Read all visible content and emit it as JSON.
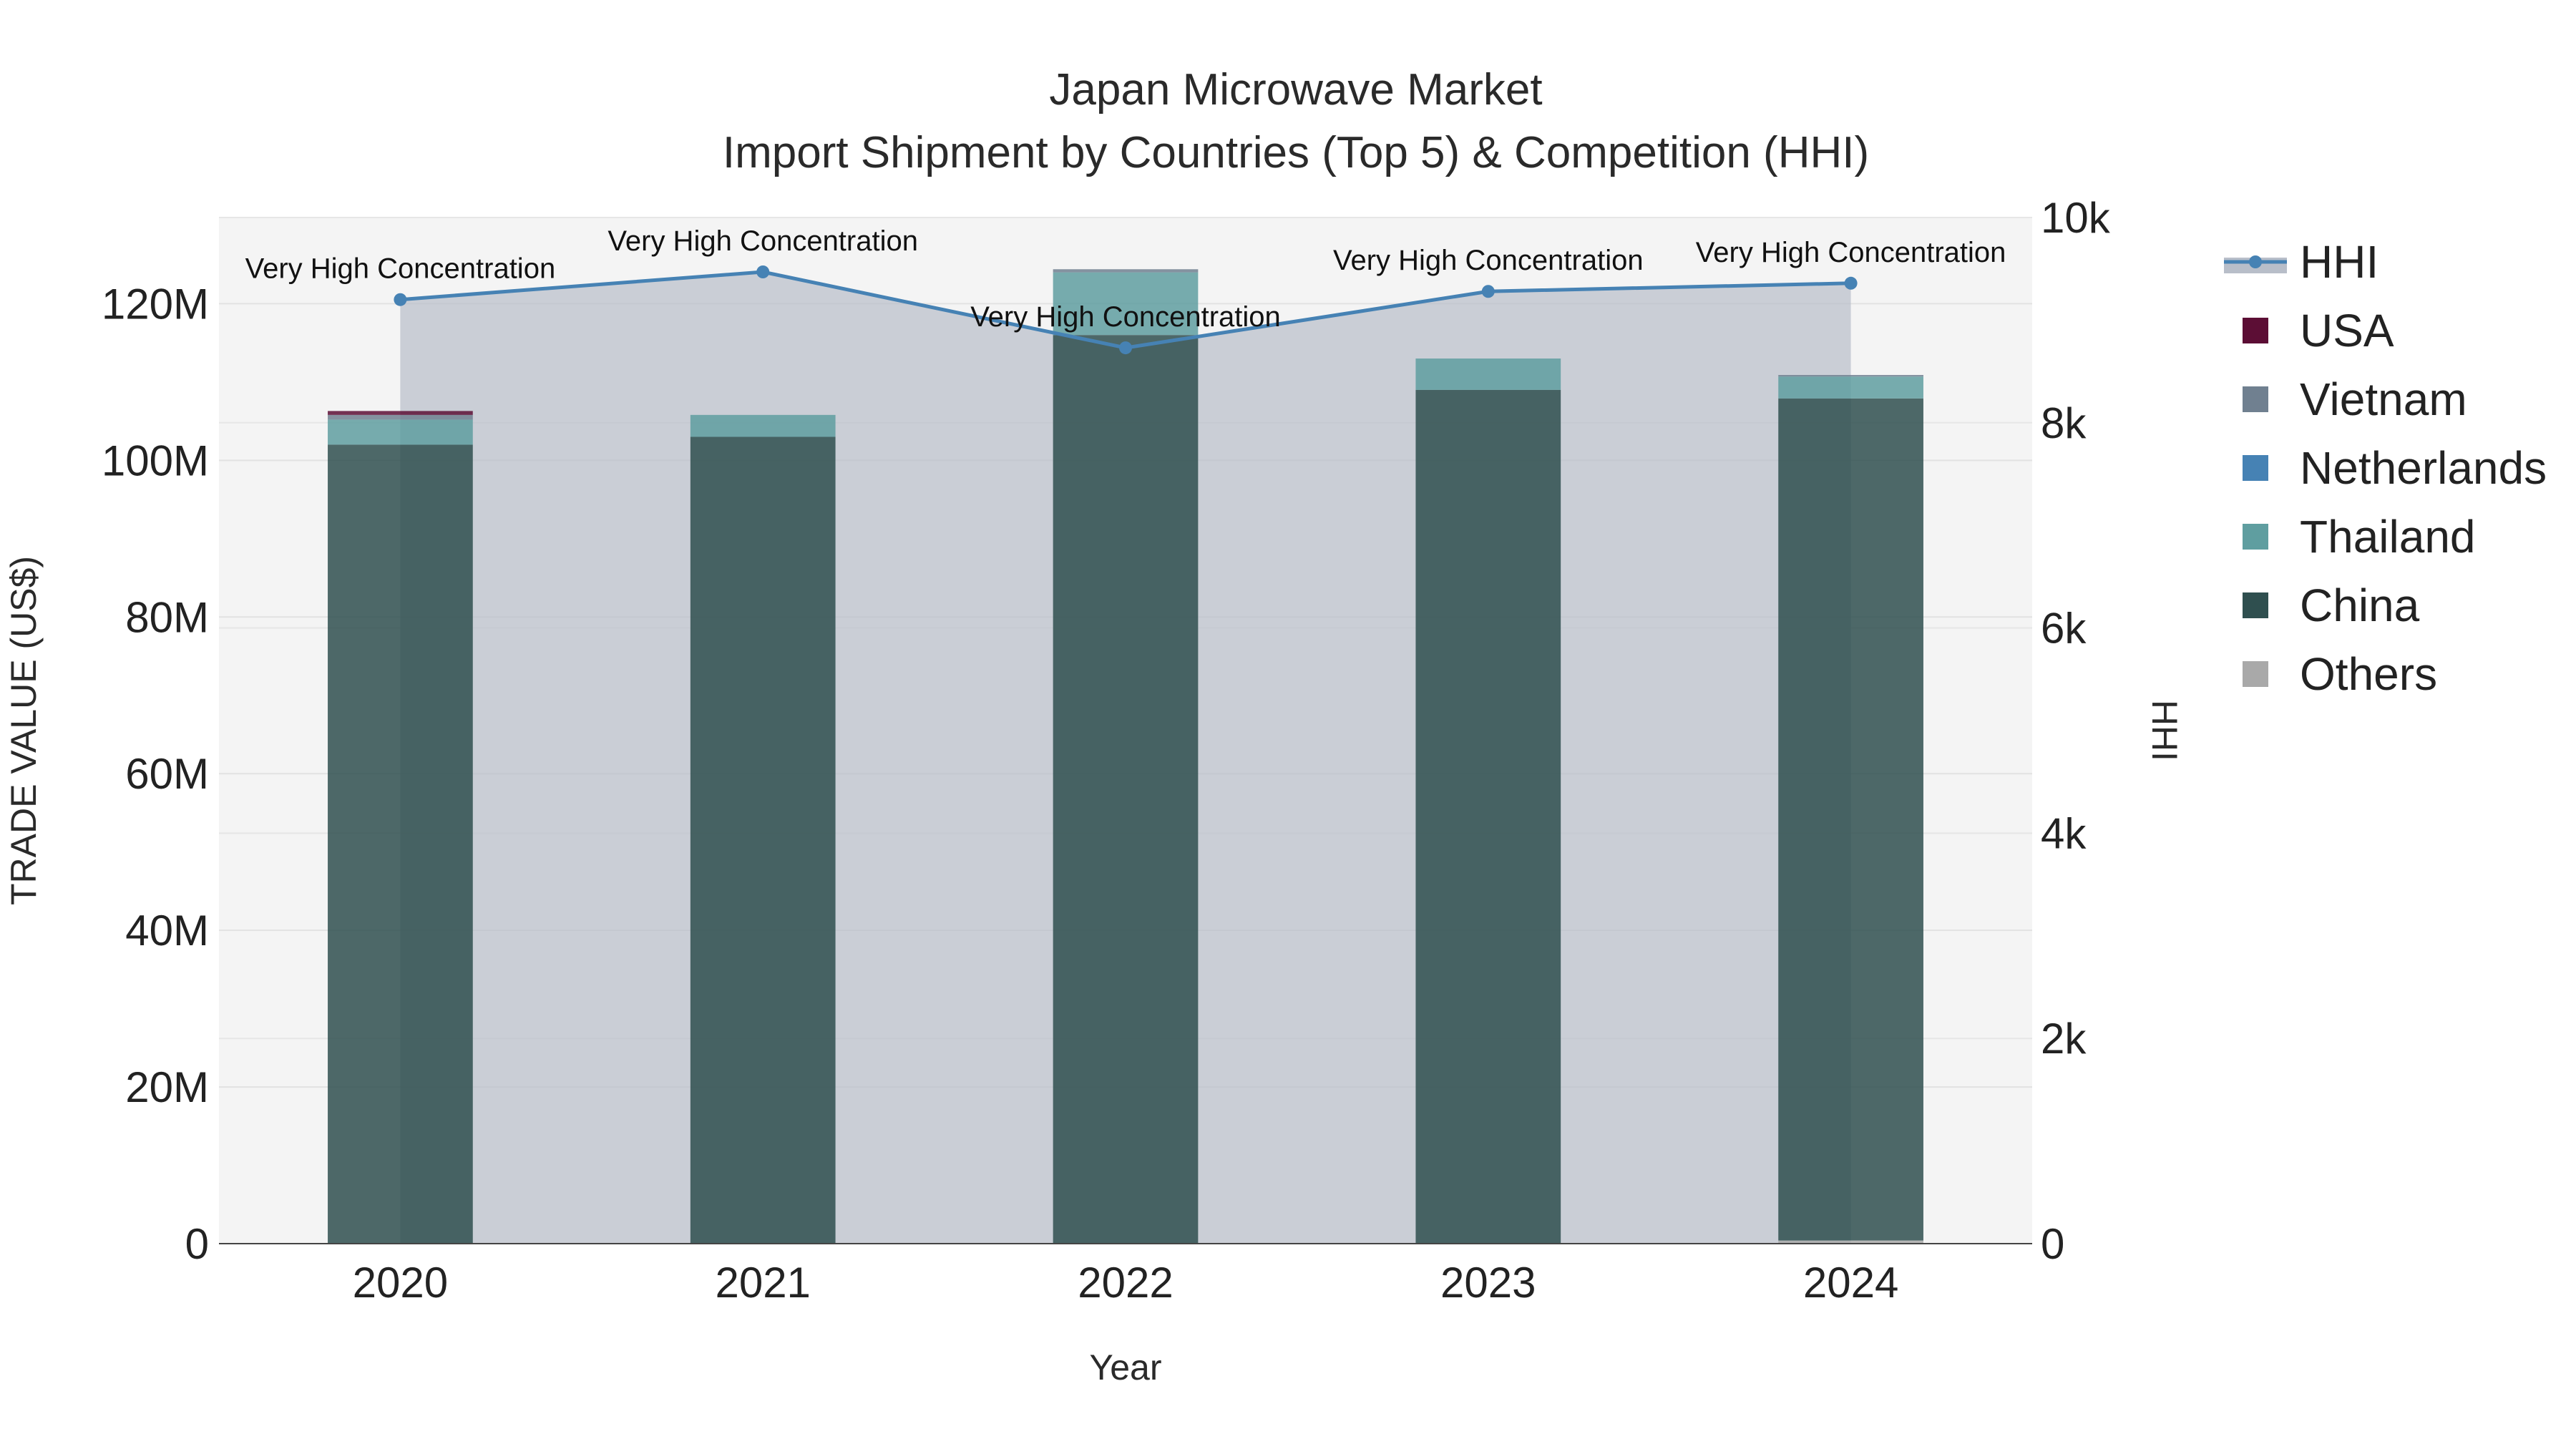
{
  "chart_data": {
    "type": "bar",
    "title": "Japan Microwave Market",
    "subtitle": "Import Shipment by Countries (Top 5) & Competition (HHI)",
    "xlabel": "Year",
    "ylabel": "TRADE VALUE (US$)",
    "y2label": "HHI",
    "categories": [
      "2020",
      "2021",
      "2022",
      "2023",
      "2024"
    ],
    "ylim": [
      0,
      131000000
    ],
    "y2lim": [
      0,
      10000
    ],
    "yticks": [
      0,
      20000000,
      40000000,
      60000000,
      80000000,
      100000000,
      120000000
    ],
    "ytick_labels": [
      "0",
      "20M",
      "40M",
      "60M",
      "80M",
      "100M",
      "120M"
    ],
    "y2ticks": [
      0,
      2000,
      4000,
      6000,
      8000,
      10000
    ],
    "y2tick_labels": [
      "0",
      "2k",
      "4k",
      "6k",
      "8k",
      "10k"
    ],
    "grid": true,
    "legend_position": "right",
    "series": [
      {
        "name": "Others",
        "color": "#a9a9a9",
        "values": [
          0,
          0,
          0,
          0,
          400000
        ]
      },
      {
        "name": "China",
        "color": "#2f4f4f",
        "values": [
          102000000,
          103000000,
          116000000,
          109000000,
          107500000
        ]
      },
      {
        "name": "Thailand",
        "color": "#5f9ea0",
        "values": [
          3200000,
          2800000,
          8000000,
          4000000,
          2800000
        ]
      },
      {
        "name": "Netherlands",
        "color": "#4682b4",
        "values": [
          0,
          0,
          0,
          0,
          0
        ]
      },
      {
        "name": "Vietnam",
        "color": "#708090",
        "values": [
          600000,
          0,
          400000,
          0,
          200000
        ]
      },
      {
        "name": "USA",
        "color": "#5c0e35",
        "values": [
          500000,
          0,
          0,
          0,
          0
        ]
      }
    ],
    "hhi": {
      "name": "HHI",
      "color": "#4682b4",
      "values": [
        9200,
        9470,
        8730,
        9280,
        9360
      ],
      "annotations": [
        "Very High Concentration",
        "Very High Concentration",
        "Very High Concentration",
        "Very High Concentration",
        "Very High Concentration"
      ]
    },
    "legend_order": [
      "HHI",
      "USA",
      "Vietnam",
      "Netherlands",
      "Thailand",
      "China",
      "Others"
    ]
  }
}
